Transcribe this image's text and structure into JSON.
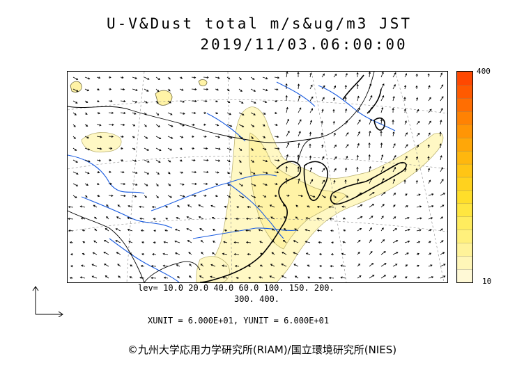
{
  "title": {
    "line1": "U-V&Dust total m/s&ug/m3 JST",
    "line2": "2019/11/03.06:00:00"
  },
  "colorbar": {
    "max_label": "400",
    "min_label": "10",
    "colors": [
      "#fff9d6",
      "#fff6b8",
      "#fff39a",
      "#fff07c",
      "#ffec5e",
      "#ffe640",
      "#ffde2a",
      "#ffd21e",
      "#ffc515",
      "#ffb70e",
      "#ffa708",
      "#ff9505",
      "#ff8203",
      "#ff6e02",
      "#ff5a00",
      "#ff4800"
    ]
  },
  "legend": {
    "levels_line1": "lev= 10.0 20.0 40.0 60.0 100. 150. 200.",
    "levels_line2": "300. 400.",
    "unit_line": "XUNIT = 6.000E+01, YUNIT = 6.000E+01"
  },
  "copyright": "©九州大学応用力学研究所(RIAM)/国立環境研究所(NIES)",
  "map_colors": {
    "dust_light": "#fff8c4",
    "dust_mid": "#fff3a6",
    "rivers": "#1a5ce0",
    "coast": "#000000",
    "grid": "#888888",
    "arrows": "#000000"
  }
}
